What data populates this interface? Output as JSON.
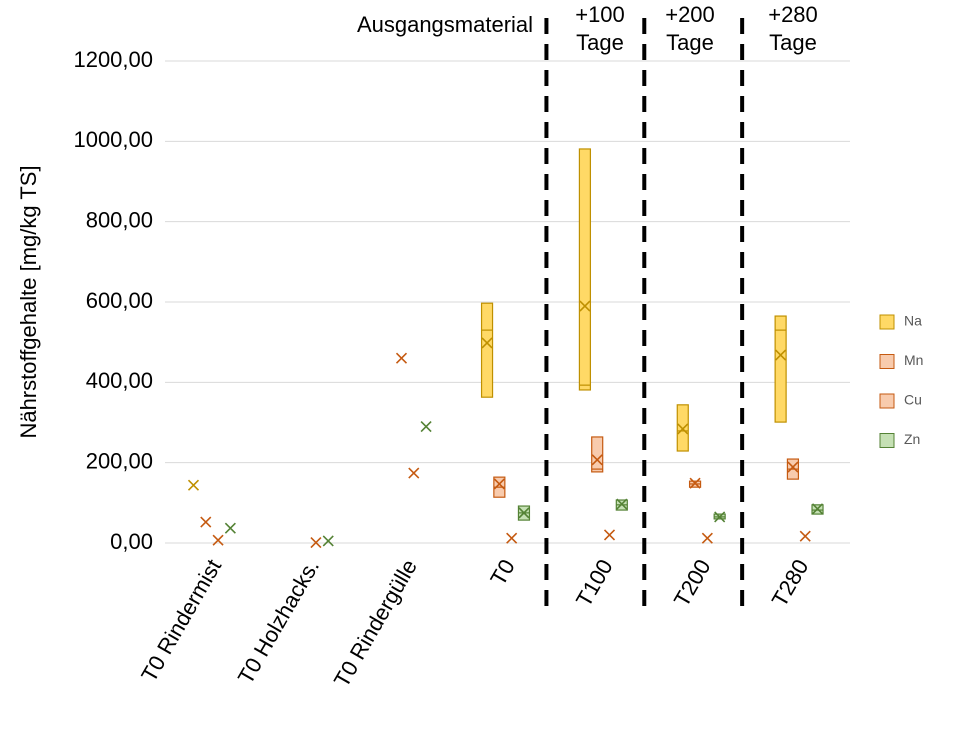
{
  "chart_data": {
    "type": "box",
    "y_label": "Nährstoffgehalte [mg/kg TS]",
    "categories": [
      "T0 Rindermist",
      "T0 Holzhacks.",
      "T0 Rindergülle",
      "T0",
      "T100",
      "T200",
      "T280"
    ],
    "ylim": [
      0,
      1200
    ],
    "yticks": [
      {
        "value": 0,
        "label": "0,00"
      },
      {
        "value": 200,
        "label": "200,00"
      },
      {
        "value": 400,
        "label": "400,00"
      },
      {
        "value": 600,
        "label": "600,00"
      },
      {
        "value": 800,
        "label": "800,00"
      },
      {
        "value": 1000,
        "label": "1000,00"
      },
      {
        "value": 1200,
        "label": "1200,00"
      }
    ],
    "grid": true,
    "legend": "right",
    "annotations": [
      {
        "lines": [
          "Ausgangsmaterial"
        ]
      },
      {
        "lines": [
          "+100",
          "Tage"
        ]
      },
      {
        "lines": [
          "+200",
          "Tage"
        ]
      },
      {
        "lines": [
          "+280",
          "Tage"
        ]
      }
    ],
    "series": [
      {
        "name": "Na",
        "color": "#ffd966",
        "edge": "#bf9000",
        "values": [
          {
            "mean": 144
          },
          null,
          null,
          {
            "q1": 363,
            "median": 530,
            "q3": 597,
            "mean": 498
          },
          {
            "q1": 381,
            "median": 393,
            "q3": 981,
            "mean": 590
          },
          {
            "q1": 229,
            "median": 279,
            "q3": 344,
            "mean": 284
          },
          {
            "q1": 301,
            "median": 530,
            "q3": 565,
            "mean": 468
          }
        ]
      },
      {
        "name": "Mn",
        "color": "#f8cbad",
        "edge": "#c55a11",
        "values": [
          {
            "mean": 52
          },
          null,
          {
            "mean": 460
          },
          {
            "q1": 114,
            "median": 139,
            "q3": 164,
            "mean": 147
          },
          {
            "q1": 177,
            "median": 184,
            "q3": 264,
            "mean": 207
          },
          {
            "q1": 139,
            "median": 147,
            "q3": 154,
            "mean": 149
          },
          {
            "q1": 159,
            "median": 184,
            "q3": 209,
            "mean": 189
          }
        ]
      },
      {
        "name": "Cu",
        "color": "#f8cbad",
        "edge": "#c55a11",
        "values": [
          {
            "mean": 7
          },
          {
            "mean": 1
          },
          {
            "mean": 174
          },
          {
            "mean": 12
          },
          {
            "mean": 20
          },
          {
            "mean": 12
          },
          {
            "mean": 17
          }
        ]
      },
      {
        "name": "Zn",
        "color": "#c5e0b4",
        "edge": "#548235",
        "values": [
          {
            "mean": 37
          },
          {
            "mean": 5
          },
          {
            "mean": 290
          },
          {
            "q1": 57,
            "median": 75,
            "q3": 92,
            "mean": 75
          },
          {
            "q1": 82,
            "median": 95,
            "q3": 107,
            "mean": 97
          },
          {
            "q1": 60,
            "median": 65,
            "q3": 72,
            "mean": 65
          },
          {
            "q1": 72,
            "median": 82,
            "q3": 95,
            "mean": 85
          }
        ]
      }
    ]
  }
}
